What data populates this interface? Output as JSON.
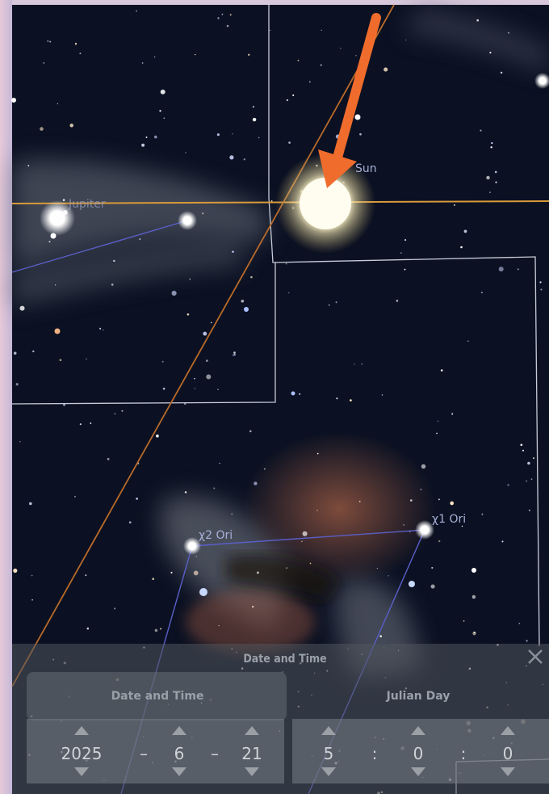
{
  "labels": {
    "sun": "Sun",
    "jupiter": "Jupiter",
    "chi2": "χ2 Ori",
    "chi1": "χ1 Ori"
  },
  "dialog": {
    "title": "Date and Time",
    "tabs": [
      "Date and Time",
      "Julian Day"
    ],
    "date": {
      "year": "2025",
      "sep1": "–",
      "month": "6",
      "sep2": "–",
      "day": "21"
    },
    "time": {
      "hour": "5",
      "sep1": ":",
      "minute": "0",
      "sep2": ":",
      "second": "0"
    }
  }
}
